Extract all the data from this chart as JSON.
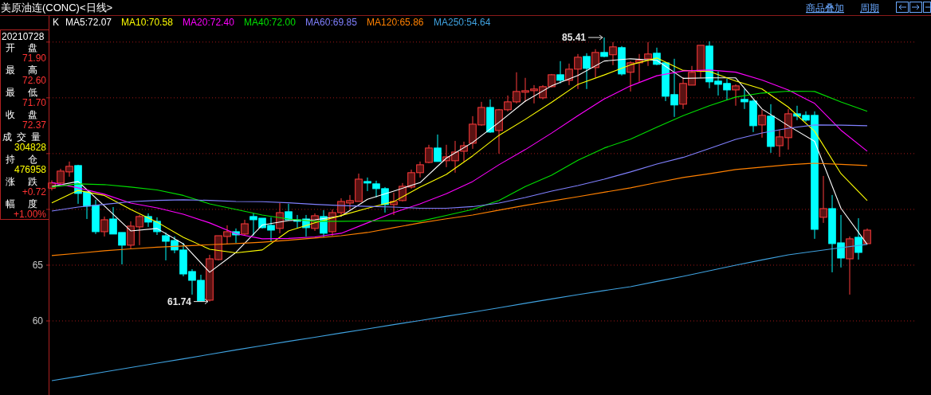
{
  "chart_data": [
    {
      "type": "candlestick",
      "title": "美原油连(CONC)<日线>",
      "categories": [
        null,
        null,
        null,
        null,
        null,
        null,
        null,
        null,
        null,
        null,
        null,
        null,
        null,
        null,
        null,
        null,
        null,
        null,
        null,
        null,
        null,
        null,
        null,
        null,
        null,
        null,
        null,
        null,
        null,
        null,
        null,
        null,
        null,
        null,
        null,
        null,
        null,
        null,
        null,
        null,
        null,
        null,
        null,
        null,
        null,
        null,
        null,
        null,
        null,
        null,
        null,
        null,
        null,
        null,
        null,
        null,
        null,
        null,
        null,
        null,
        null,
        null,
        null,
        null,
        null,
        null,
        null,
        null,
        null,
        null,
        null,
        null,
        null,
        null,
        null,
        null,
        null,
        null,
        null,
        null,
        null,
        null,
        null,
        null,
        null,
        null,
        null,
        null,
        null,
        null,
        null,
        null,
        null,
        null
      ],
      "ohlc": [
        [
          71.9,
          72.6,
          71.7,
          72.37
        ],
        [
          72.36,
          73.64,
          72.21,
          73.43
        ],
        [
          73.36,
          74.29,
          72.93,
          73.86
        ],
        [
          73.93,
          74.0,
          70.5,
          71.43
        ],
        [
          71.57,
          71.64,
          69.14,
          70.29
        ],
        [
          70.36,
          70.86,
          67.79,
          68.0
        ],
        [
          68.0,
          69.36,
          67.57,
          69.07
        ],
        [
          69.14,
          70.21,
          67.79,
          67.79
        ],
        [
          67.93,
          67.93,
          65.07,
          66.79
        ],
        [
          66.79,
          68.93,
          66.5,
          68.5
        ],
        [
          68.43,
          69.5,
          66.79,
          69.36
        ],
        [
          69.36,
          69.64,
          68.43,
          68.86
        ],
        [
          68.93,
          69.29,
          67.71,
          68.0
        ],
        [
          67.64,
          67.93,
          65.43,
          67.14
        ],
        [
          67.21,
          67.57,
          66.07,
          66.36
        ],
        [
          66.36,
          67.0,
          64.0,
          64.21
        ],
        [
          64.43,
          64.64,
          62.36,
          63.64
        ],
        [
          63.64,
          64.14,
          61.8,
          61.8
        ],
        [
          61.86,
          65.93,
          61.74,
          65.57
        ],
        [
          65.5,
          67.64,
          65.43,
          67.64
        ],
        [
          67.57,
          68.57,
          66.86,
          68.0
        ],
        [
          68.0,
          68.29,
          67.0,
          67.71
        ],
        [
          67.79,
          69.07,
          67.64,
          68.71
        ],
        [
          69.36,
          69.64,
          67.64,
          69.07
        ],
        [
          69.21,
          69.21,
          68.29,
          68.36
        ],
        [
          68.57,
          69.29,
          67.14,
          68.14
        ],
        [
          68.29,
          70.57,
          67.86,
          69.71
        ],
        [
          69.79,
          70.5,
          69.0,
          69.07
        ],
        [
          69.07,
          69.5,
          68.29,
          68.93
        ],
        [
          69.14,
          69.5,
          67.57,
          68.36
        ],
        [
          68.29,
          69.64,
          68.07,
          69.43
        ],
        [
          69.36,
          69.93,
          67.5,
          67.86
        ],
        [
          68.0,
          70.0,
          67.64,
          69.71
        ],
        [
          69.71,
          71.0,
          69.5,
          70.71
        ],
        [
          70.57,
          71.29,
          70.0,
          70.79
        ],
        [
          70.71,
          73.21,
          70.71,
          72.71
        ],
        [
          72.5,
          72.86,
          71.64,
          72.36
        ],
        [
          72.29,
          72.57,
          71.07,
          71.86
        ],
        [
          71.86,
          72.0,
          69.71,
          70.43
        ],
        [
          70.43,
          71.5,
          69.5,
          70.71
        ],
        [
          70.79,
          72.36,
          70.71,
          72.07
        ],
        [
          72.0,
          73.57,
          71.86,
          73.29
        ],
        [
          73.29,
          74.29,
          72.86,
          74.0
        ],
        [
          74.21,
          75.79,
          74.14,
          75.5
        ],
        [
          75.5,
          76.71,
          74.29,
          74.29
        ],
        [
          74.36,
          75.79,
          73.79,
          74.71
        ],
        [
          74.36,
          76.14,
          73.29,
          75.14
        ],
        [
          75.21,
          76.07,
          74.29,
          75.71
        ],
        [
          75.93,
          78.36,
          75.43,
          77.64
        ],
        [
          77.57,
          79.64,
          77.5,
          79.14
        ],
        [
          79.14,
          79.86,
          76.86,
          76.93
        ],
        [
          77.07,
          79.0,
          75.0,
          78.93
        ],
        [
          78.93,
          80.21,
          78.79,
          79.64
        ],
        [
          79.64,
          82.29,
          79.5,
          80.57
        ],
        [
          80.5,
          81.79,
          79.64,
          80.64
        ],
        [
          80.64,
          81.14,
          79.5,
          80.79
        ],
        [
          80.0,
          81.14,
          79.86,
          81.0
        ],
        [
          81.0,
          82.14,
          80.93,
          82.07
        ],
        [
          82.07,
          83.29,
          81.29,
          81.57
        ],
        [
          81.57,
          83.07,
          81.14,
          82.57
        ],
        [
          82.57,
          83.93,
          80.79,
          83.64
        ],
        [
          83.71,
          84.0,
          80.79,
          82.64
        ],
        [
          82.71,
          84.36,
          81.79,
          84.07
        ],
        [
          84.07,
          85.41,
          83.64,
          83.71
        ],
        [
          83.86,
          85.0,
          82.93,
          84.57
        ],
        [
          84.5,
          84.64,
          82.0,
          82.14
        ],
        [
          82.29,
          83.29,
          80.57,
          83.14
        ],
        [
          83.14,
          83.93,
          81.43,
          83.36
        ],
        [
          83.5,
          85.0,
          82.86,
          83.93
        ],
        [
          84.0,
          84.5,
          82.93,
          83.0
        ],
        [
          83.14,
          83.21,
          79.71,
          80.14
        ],
        [
          80.29,
          83.5,
          78.29,
          79.36
        ],
        [
          79.43,
          81.86,
          79.0,
          81.29
        ],
        [
          81.14,
          82.86,
          81.14,
          82.29
        ],
        [
          82.36,
          84.71,
          81.79,
          84.71
        ],
        [
          84.64,
          85.07,
          80.86,
          81.43
        ],
        [
          81.5,
          82.36,
          80.21,
          81.21
        ],
        [
          81.29,
          81.71,
          79.79,
          80.71
        ],
        [
          80.71,
          81.21,
          79.29,
          81.07
        ],
        [
          79.86,
          80.79,
          79.0,
          79.64
        ],
        [
          79.71,
          79.86,
          76.93,
          77.5
        ],
        [
          77.57,
          78.93,
          76.43,
          78.43
        ],
        [
          78.36,
          79.43,
          75.07,
          75.64
        ],
        [
          75.71,
          77.14,
          74.71,
          76.5
        ],
        [
          76.43,
          79.0,
          75.36,
          78.57
        ],
        [
          78.57,
          79.29,
          78.0,
          78.36
        ],
        [
          78.43,
          78.79,
          77.86,
          78.0
        ],
        [
          78.43,
          78.79,
          67.36,
          68.21
        ],
        [
          69.29,
          73.0,
          68.79,
          70.07
        ],
        [
          70.07,
          71.29,
          64.36,
          66.93
        ],
        [
          67.0,
          69.5,
          64.79,
          65.64
        ],
        [
          65.57,
          67.57,
          62.36,
          67.36
        ],
        [
          67.5,
          69.21,
          65.5,
          66.14
        ],
        [
          66.93,
          68.29,
          66.86,
          68.14
        ]
      ],
      "ylim": [
        53.36,
        87.2
      ],
      "yticks": [
        60,
        65,
        {
          "value": 70,
          "label": null
        },
        {
          "value": 75,
          "label": null
        },
        {
          "value": 80,
          "label": null
        },
        {
          "value": 85,
          "label": null
        }
      ],
      "tick_labels": "y",
      "grid": "y",
      "annotations": [
        "20210728",
        "开 盘",
        "71.90",
        "最 高",
        "72.60",
        "最 低",
        "71.70",
        "收 盘",
        "72.37",
        "成交量",
        "304828",
        "持 仓",
        "476958",
        "涨 跌",
        "+0.72",
        "幅 度",
        "+1.00%",
        "商品叠加",
        "周期",
        "K",
        "85.41",
        "61.74"
      ]
    },
    {
      "type": "line",
      "categories": [
        null,
        null,
        null,
        null,
        null,
        null,
        null,
        null,
        null,
        null,
        null,
        null,
        null,
        null,
        null,
        null,
        null,
        null,
        null,
        null,
        null,
        null,
        null,
        null,
        null,
        null,
        null,
        null,
        null,
        null,
        null,
        null
      ],
      "ylim": [
        53.36,
        87.2
      ],
      "series": [
        {
          "name": "MA5:72.07",
          "color": "#ffffff",
          "values": [
            72.07,
            72.5,
            70.3,
            68.07,
            68.29,
            66.9,
            64.36,
            66.14,
            68.6,
            69.0,
            69.07,
            69.4,
            70.9,
            71.64,
            72.4,
            74.6,
            76.0,
            77.8,
            79.7,
            81.07,
            82.0,
            83.3,
            83.5,
            83.36,
            81.75,
            81.79,
            81.79,
            79.0,
            77.5,
            76.1,
            70.1,
            66.86
          ]
        },
        {
          "name": "MA10:70.58",
          "color": "#ffff00",
          "values": [
            70.58,
            71.7,
            71.25,
            70.0,
            68.86,
            67.5,
            66.43,
            66.1,
            66.36,
            68.07,
            68.8,
            69.45,
            70.1,
            70.7,
            72.0,
            73.14,
            74.8,
            76.64,
            78.07,
            79.6,
            81.21,
            82.05,
            82.96,
            83.57,
            82.46,
            82.36,
            81.5,
            80.79,
            79.17,
            77.0,
            73.21,
            70.79
          ]
        },
        {
          "name": "MA20:72.40",
          "color": "#ff00ff",
          "values": [
            72.4,
            71.93,
            71.36,
            70.57,
            70.14,
            69.57,
            68.79,
            67.82,
            67.36,
            67.4,
            67.53,
            67.86,
            68.79,
            69.71,
            70.5,
            71.4,
            72.5,
            74.0,
            75.36,
            76.84,
            78.4,
            79.9,
            81.07,
            81.98,
            82.41,
            82.5,
            82.3,
            81.6,
            80.7,
            79.5,
            77.1,
            75.21
          ]
        },
        {
          "name": "MA40:72.00",
          "color": "#00e000",
          "values": [
            72.0,
            72.29,
            72.22,
            72.0,
            71.74,
            71.25,
            70.5,
            70.0,
            69.5,
            69.14,
            68.93,
            68.93,
            68.96,
            69.0,
            68.93,
            69.46,
            70.0,
            70.8,
            72.05,
            73.07,
            74.4,
            75.5,
            76.3,
            77.36,
            78.4,
            79.3,
            80.07,
            80.43,
            80.6,
            80.57,
            79.64,
            78.79
          ]
        },
        {
          "name": "MA60:69.85",
          "color": "#8080ff",
          "values": [
            69.85,
            70.21,
            70.45,
            70.69,
            70.81,
            70.86,
            70.81,
            70.71,
            70.69,
            70.59,
            70.45,
            70.34,
            70.27,
            70.21,
            70.1,
            70.1,
            70.25,
            70.57,
            71.07,
            71.64,
            72.14,
            72.71,
            73.36,
            74.07,
            74.66,
            75.46,
            76.28,
            76.85,
            77.28,
            77.57,
            77.55,
            77.5
          ]
        },
        {
          "name": "MA120:65.86",
          "color": "#ff8000",
          "values": [
            65.86,
            66.07,
            66.29,
            66.46,
            66.61,
            66.72,
            66.83,
            66.93,
            67.06,
            67.24,
            67.43,
            67.64,
            67.93,
            68.36,
            68.79,
            69.15,
            69.5,
            69.93,
            70.36,
            70.75,
            71.14,
            71.54,
            71.93,
            72.4,
            72.86,
            73.2,
            73.57,
            73.79,
            74.0,
            74.14,
            74.04,
            73.93
          ]
        },
        {
          "name": "MA250:54.64",
          "color": "#3fa2e0",
          "values": [
            54.64,
            55.03,
            55.43,
            55.82,
            56.21,
            56.6,
            57.0,
            57.4,
            57.79,
            58.17,
            58.54,
            58.92,
            59.29,
            59.67,
            60.04,
            60.42,
            60.79,
            61.18,
            61.58,
            61.97,
            62.36,
            62.72,
            63.07,
            63.54,
            64.0,
            64.5,
            65.0,
            65.47,
            65.93,
            66.25,
            66.57,
            66.86
          ]
        }
      ]
    }
  ]
}
